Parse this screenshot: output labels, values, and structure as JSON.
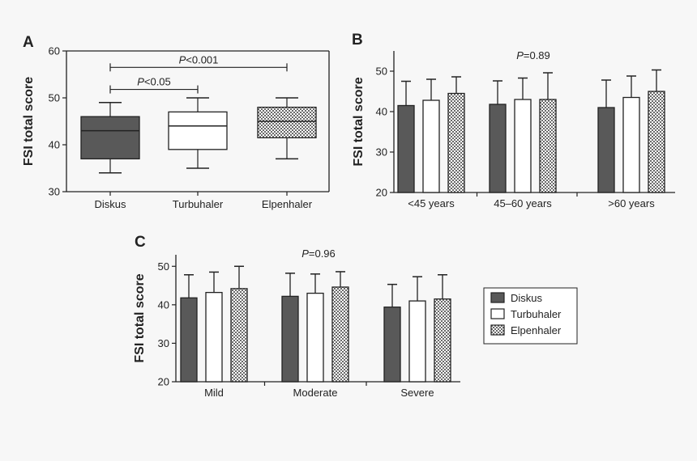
{
  "colors": {
    "Diskus": "#595959",
    "Turbuhaler": "#ffffff",
    "Elpenhaler": "checker",
    "axis": "#222222"
  },
  "chart_data": [
    {
      "panel": "A",
      "type": "box",
      "ylabel": "FSI total score",
      "ylim": [
        30,
        60
      ],
      "yticks": [
        30,
        40,
        50,
        60
      ],
      "categories": [
        "Diskus",
        "Turbuhaler",
        "Elpenhaler"
      ],
      "boxes": [
        {
          "name": "Diskus",
          "min": 34,
          "q1": 37,
          "median": 43,
          "q3": 46,
          "max": 49
        },
        {
          "name": "Turbuhaler",
          "min": 35,
          "q1": 39,
          "median": 44,
          "q3": 47,
          "max": 50
        },
        {
          "name": "Elpenhaler",
          "min": 37,
          "q1": 41.5,
          "median": 45,
          "q3": 48,
          "max": 50
        }
      ],
      "brackets": [
        {
          "from": 0,
          "to": 2,
          "y": 56.5,
          "p_italic": "P",
          "p_rest": "<0.001"
        },
        {
          "from": 0,
          "to": 1,
          "y": 51.8,
          "p_italic": "P",
          "p_rest": "<0.05"
        }
      ]
    },
    {
      "panel": "B",
      "type": "bar",
      "ylabel": "FSI total score",
      "ylim": [
        20,
        55
      ],
      "yticks": [
        20,
        30,
        40,
        50
      ],
      "annotation": {
        "p_italic": "P",
        "p_rest": "=0.89"
      },
      "categories": [
        "<45 years",
        "45–60 years",
        ">60 years"
      ],
      "series": [
        {
          "name": "Diskus",
          "values": [
            41.5,
            41.8,
            41.0
          ],
          "errors": [
            6.0,
            5.8,
            6.8
          ]
        },
        {
          "name": "Turbuhaler",
          "values": [
            42.8,
            43.0,
            43.5
          ],
          "errors": [
            5.2,
            5.3,
            5.3
          ]
        },
        {
          "name": "Elpenhaler",
          "values": [
            44.5,
            43.0,
            45.0
          ],
          "errors": [
            4.1,
            6.6,
            5.3
          ]
        }
      ]
    },
    {
      "panel": "C",
      "type": "bar",
      "ylabel": "FSI total score",
      "ylim": [
        20,
        53
      ],
      "yticks": [
        20,
        30,
        40,
        50
      ],
      "annotation": {
        "p_italic": "P",
        "p_rest": "=0.96"
      },
      "categories": [
        "Mild",
        "Moderate",
        "Severe"
      ],
      "series": [
        {
          "name": "Diskus",
          "values": [
            41.8,
            42.2,
            39.4
          ],
          "errors": [
            6.0,
            6.0,
            5.9
          ]
        },
        {
          "name": "Turbuhaler",
          "values": [
            43.2,
            43.0,
            41.0
          ],
          "errors": [
            5.3,
            5.0,
            6.3
          ]
        },
        {
          "name": "Elpenhaler",
          "values": [
            44.2,
            44.6,
            41.5
          ],
          "errors": [
            5.8,
            4.0,
            6.3
          ]
        }
      ]
    }
  ],
  "legend": {
    "placement": "right-of-panel-C",
    "items": [
      "Diskus",
      "Turbuhaler",
      "Elpenhaler"
    ]
  }
}
